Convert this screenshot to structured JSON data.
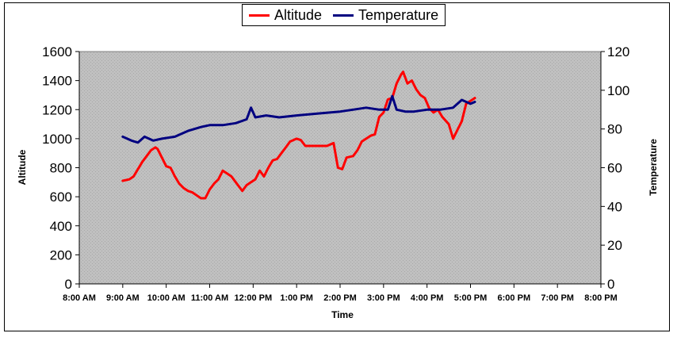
{
  "chart_data": {
    "type": "line",
    "title": "",
    "xlabel": "Time",
    "ylabel_left": "Altitude",
    "ylabel_right": "Temperature",
    "x_ticks": [
      "8:00 AM",
      "9:00 AM",
      "10:00 AM",
      "11:00 AM",
      "12:00 PM",
      "1:00 PM",
      "2:00 PM",
      "3:00 PM",
      "4:00 PM",
      "5:00 PM",
      "6:00 PM",
      "7:00 PM",
      "8:00 PM"
    ],
    "xlim": [
      8,
      20
    ],
    "y_left_ticks": [
      "0",
      "200",
      "400",
      "600",
      "800",
      "1000",
      "1200",
      "1400",
      "1600"
    ],
    "ylim_left": [
      0,
      1600
    ],
    "y_right_ticks": [
      "0",
      "20",
      "40",
      "60",
      "80",
      "100",
      "120"
    ],
    "ylim_right": [
      0,
      120
    ],
    "plot_background": "#c0c0c0",
    "legend_placement": "top-center",
    "series": [
      {
        "name": "Altitude",
        "axis": "left",
        "color": "#ff0000",
        "x": [
          9.0,
          9.15,
          9.25,
          9.35,
          9.45,
          9.55,
          9.65,
          9.75,
          9.8,
          9.9,
          10.0,
          10.1,
          10.2,
          10.3,
          10.4,
          10.5,
          10.6,
          10.7,
          10.8,
          10.9,
          11.0,
          11.1,
          11.2,
          11.3,
          11.4,
          11.5,
          11.6,
          11.7,
          11.75,
          11.85,
          11.95,
          12.05,
          12.15,
          12.25,
          12.35,
          12.45,
          12.55,
          12.65,
          12.75,
          12.85,
          13.0,
          13.1,
          13.2,
          13.3,
          13.5,
          13.7,
          13.85,
          13.95,
          14.05,
          14.15,
          14.3,
          14.4,
          14.5,
          14.6,
          14.7,
          14.8,
          14.9,
          15.0,
          15.1,
          15.2,
          15.3,
          15.4,
          15.45,
          15.55,
          15.65,
          15.75,
          15.85,
          15.95,
          16.05,
          16.15,
          16.25,
          16.35,
          16.5,
          16.6,
          16.7,
          16.8,
          16.9,
          17.0,
          17.1
        ],
        "values": [
          710,
          720,
          740,
          790,
          840,
          880,
          920,
          940,
          930,
          870,
          810,
          800,
          740,
          690,
          660,
          640,
          630,
          610,
          590,
          590,
          650,
          690,
          720,
          780,
          760,
          740,
          700,
          660,
          640,
          680,
          700,
          720,
          780,
          740,
          800,
          850,
          860,
          900,
          940,
          980,
          1000,
          990,
          950,
          950,
          950,
          950,
          970,
          800,
          790,
          870,
          880,
          920,
          980,
          1000,
          1020,
          1030,
          1150,
          1180,
          1270,
          1280,
          1380,
          1440,
          1460,
          1380,
          1400,
          1340,
          1300,
          1280,
          1210,
          1180,
          1200,
          1150,
          1100,
          1000,
          1060,
          1120,
          1240,
          1260,
          1280
        ]
      },
      {
        "name": "Temperature",
        "axis": "right",
        "color": "#000080",
        "x": [
          9.0,
          9.2,
          9.35,
          9.5,
          9.7,
          9.9,
          10.2,
          10.5,
          10.8,
          11.0,
          11.3,
          11.6,
          11.85,
          11.95,
          12.05,
          12.3,
          12.6,
          13.0,
          13.5,
          14.0,
          14.3,
          14.6,
          14.9,
          15.1,
          15.2,
          15.3,
          15.5,
          15.7,
          16.0,
          16.3,
          16.6,
          16.8,
          17.0,
          17.1
        ],
        "values": [
          76,
          74,
          73,
          76,
          74,
          75,
          76,
          79,
          81,
          82,
          82,
          83,
          85,
          91,
          86,
          87,
          86,
          87,
          88,
          89,
          90,
          91,
          90,
          90,
          97,
          90,
          89,
          89,
          90,
          90,
          91,
          95,
          93,
          94
        ]
      }
    ]
  }
}
